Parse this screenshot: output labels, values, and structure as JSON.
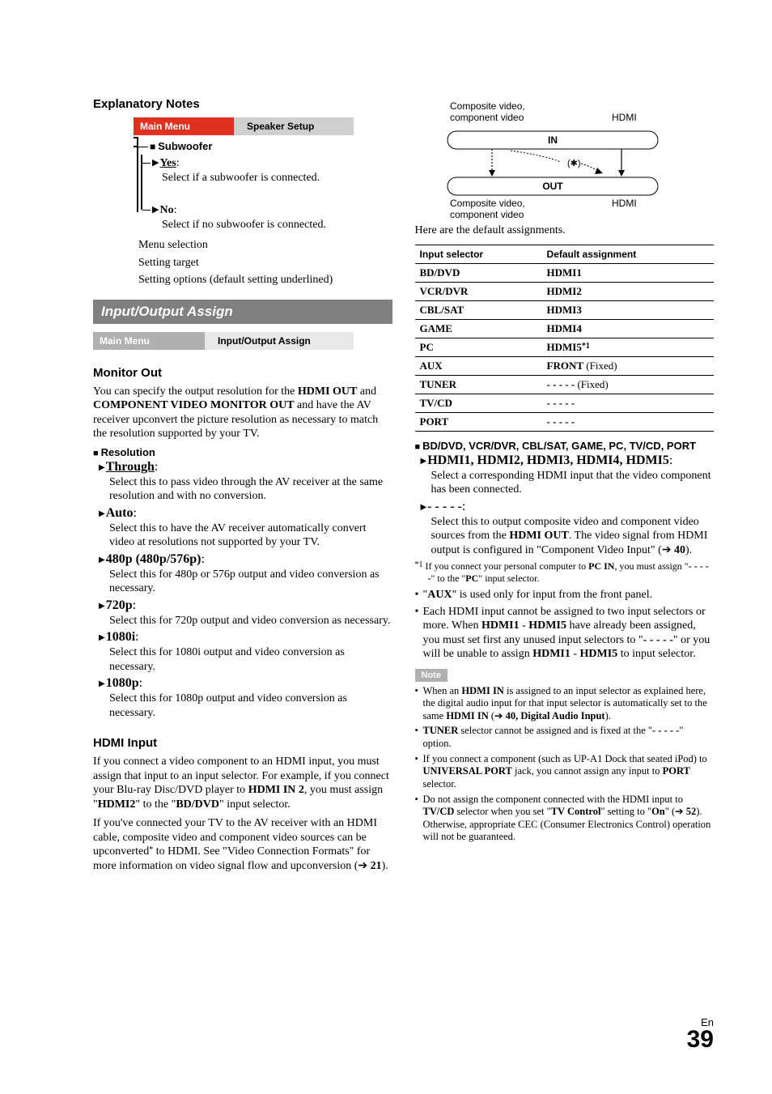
{
  "page": {
    "lang": "En",
    "number": "39"
  },
  "left": {
    "explanatory_title": "Explanatory Notes",
    "menubar": {
      "main": "Main Menu",
      "sub": "Speaker Setup"
    },
    "subwoofer_label": "Subwoofer",
    "opt_yes": "Yes",
    "opt_yes_desc": "Select if a subwoofer is connected.",
    "opt_no": "No",
    "opt_no_desc": "Select if no subwoofer is connected.",
    "legend1": "Menu selection",
    "legend2": "Setting target",
    "legend3": "Setting options (default setting underlined)",
    "section_bar": "Input/Output Assign",
    "menubar2": {
      "main": "Main Menu",
      "sub": "Input/Output Assign"
    },
    "monitor_out_h": "Monitor Out",
    "monitor_out_p": "You can specify the output resolution for the HDMI OUT and COMPONENT VIDEO MONITOR OUT and have the AV receiver upconvert the picture resolution as necessary to match the resolution supported by your TV.",
    "resolution_h": "Resolution",
    "res_items": [
      {
        "label": "Through",
        "underline": true,
        "desc": "Select this to pass video through the AV receiver at the same resolution and with no conversion."
      },
      {
        "label": "Auto",
        "underline": false,
        "desc": "Select this to have the AV receiver automatically convert video at resolutions not supported by your TV."
      },
      {
        "label": "480p (480p/576p)",
        "underline": false,
        "desc": "Select this for 480p or 576p output and video conversion as necessary."
      },
      {
        "label": "720p",
        "underline": false,
        "desc": "Select this for 720p output and video conversion as necessary."
      },
      {
        "label": "1080i",
        "underline": false,
        "desc": "Select this for 1080i output and video conversion as necessary."
      },
      {
        "label": "1080p",
        "underline": false,
        "desc": "Select this for 1080p output and video conversion as necessary."
      }
    ],
    "hdmi_input_h": "HDMI Input",
    "hdmi_input_p1_pre": "If you connect a video component to an HDMI input, you must assign that input to an input selector. For example, if you connect your Blu-ray Disc/DVD player to ",
    "hdmi_in2": "HDMI IN 2",
    "hdmi_input_p1_mid": ", you must assign \"",
    "hdmi2": "HDMI2",
    "hdmi_input_p1_mid2": "\" to the \"",
    "bddvd": "BD/DVD",
    "hdmi_input_p1_end": "\" input selector.",
    "hdmi_input_p2_pre": "If you've connected your TV to the AV receiver with an HDMI cable, composite video and component video sources can be upconverted",
    "hdmi_input_p2_post": " to HDMI. See \"Video Connection Formats\" for more information on video signal flow and upconversion (➔ ",
    "hdmi_input_p2_ref": "21",
    "hdmi_input_p2_end": ")."
  },
  "right": {
    "diagram": {
      "tl": "Composite video,\ncomponent video",
      "tr": "HDMI",
      "in": "IN",
      "out": "OUT",
      "bl": "Composite video,\ncomponent video",
      "br": "HDMI"
    },
    "default_line": "Here are the default assignments.",
    "table": {
      "h1": "Input selector",
      "h2": "Default assignment",
      "rows": [
        {
          "a": "BD/DVD",
          "b": "HDMI1"
        },
        {
          "a": "VCR/DVR",
          "b": "HDMI2"
        },
        {
          "a": "CBL/SAT",
          "b": "HDMI3"
        },
        {
          "a": "GAME",
          "b": "HDMI4"
        },
        {
          "a": "PC",
          "b": "HDMI5",
          "sup": "*1"
        },
        {
          "a": "AUX",
          "b": "FRONT",
          "suffix": " (Fixed)"
        },
        {
          "a": "TUNER",
          "b": "- - - - -",
          "suffix": " (Fixed)"
        },
        {
          "a": "TV/CD",
          "b": "- - - - -"
        },
        {
          "a": "PORT",
          "b": "- - - - -"
        }
      ]
    },
    "selector_heading": "BD/DVD, VCR/DVR, CBL/SAT, GAME, PC, TV/CD, PORT",
    "hdmi_list_label": "HDMI1, HDMI2, HDMI3, HDMI4, HDMI5",
    "hdmi_list_desc": "Select a corresponding HDMI input that the video component has been connected.",
    "dashes_label": "- - - - -",
    "dashes_desc_pre": "Select this to output composite video and component video sources from the ",
    "dashes_desc_bold": "HDMI OUT",
    "dashes_desc_post": ". The video signal from HDMI output is configured in \"Component Video Input\" (➔ ",
    "dashes_desc_ref": "40",
    "dashes_desc_end": ").",
    "fn1_pre": "If you connect your personal computer to ",
    "fn1_b1": "PC IN",
    "fn1_mid": ", you must assign \"",
    "fn1_b2": "- - - - -",
    "fn1_mid2": "\" to the \"",
    "fn1_b3": "PC",
    "fn1_end": "\" input selector.",
    "bul1_pre": "\"",
    "bul1_b": "AUX",
    "bul1_post": "\" is used only for input from the front panel.",
    "bul2_pre": "Each HDMI input cannot be assigned to two input selectors or more. When ",
    "bul2_b1": "HDMI1",
    "bul2_dash": " - ",
    "bul2_b2": "HDMI5",
    "bul2_mid": " have already been assigned, you must set first any unused input selectors to \"",
    "bul2_b3": "- - - - -",
    "bul2_mid2": "\" or you will be unable to assign ",
    "bul2_b4": "HDMI1",
    "bul2_b5": "HDMI5",
    "bul2_end": " to input selector.",
    "note_label": "Note",
    "n1_pre": "When an ",
    "n1_b1": "HDMI IN",
    "n1_mid": " is assigned to an input selector as explained here, the digital audio input for that input selector is automatically set to the same ",
    "n1_b2": "HDMI IN",
    "n1_mid2": " (➔ ",
    "n1_ref": "40, Digital Audio Input",
    "n1_end": ").",
    "n2_b1": "TUNER",
    "n2_mid": " selector cannot be assigned and is fixed at the \"",
    "n2_b2": "- - - - -",
    "n2_end": "\" option.",
    "n3_pre": "If you connect a component (such as UP-A1 Dock that seated iPod) to ",
    "n3_b1": "UNIVERSAL PORT",
    "n3_mid": " jack, you cannot assign any input to ",
    "n3_b2": "PORT",
    "n3_end": " selector.",
    "n4_pre": "Do not assign the component connected with the HDMI input to ",
    "n4_b1": "TV/CD",
    "n4_mid": " selector when you set \"",
    "n4_b2": "TV Control",
    "n4_mid2": "\" setting to \"",
    "n4_b3": "On",
    "n4_mid3": "\" (➔ ",
    "n4_ref": "52",
    "n4_end": "). Otherwise, appropriate CEC (Consumer Electronics Control) operation will not be guaranteed."
  }
}
